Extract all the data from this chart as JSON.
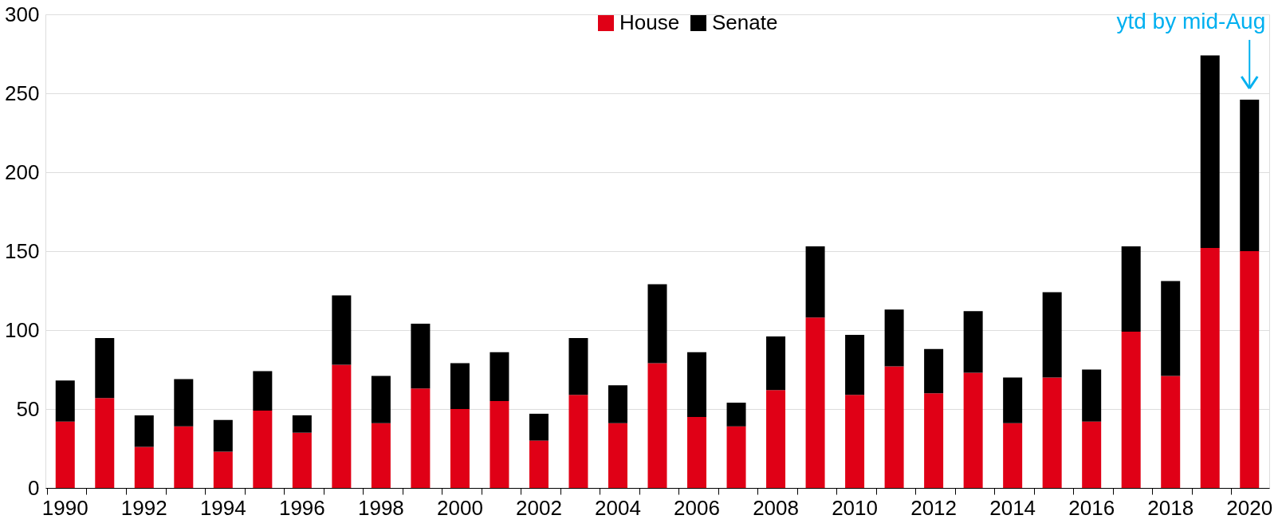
{
  "chart_data": {
    "type": "bar",
    "stacked": true,
    "categories": [
      "1990",
      null,
      "1992",
      null,
      "1994",
      null,
      "1996",
      null,
      "1998",
      null,
      "2000",
      null,
      "2002",
      null,
      "2004",
      null,
      "2006",
      null,
      "2008",
      null,
      "2010",
      null,
      "2012",
      null,
      "2014",
      null,
      "2016",
      null,
      "2018",
      null,
      "2020"
    ],
    "series": [
      {
        "name": "House",
        "color": "#e00016",
        "values": [
          42,
          57,
          26,
          39,
          23,
          49,
          35,
          78,
          41,
          63,
          50,
          55,
          30,
          59,
          41,
          79,
          45,
          39,
          62,
          108,
          59,
          77,
          60,
          73,
          41,
          70,
          42,
          99,
          71,
          152,
          150
        ]
      },
      {
        "name": "Senate",
        "color": "#000000",
        "values": [
          26,
          38,
          20,
          30,
          20,
          25,
          11,
          44,
          30,
          41,
          29,
          31,
          17,
          36,
          24,
          50,
          41,
          15,
          34,
          45,
          38,
          36,
          28,
          39,
          29,
          54,
          33,
          54,
          60,
          122,
          96
        ]
      }
    ],
    "ylim": [
      0,
      300
    ],
    "yticks": [
      0,
      50,
      100,
      150,
      200,
      250,
      300
    ],
    "grid": "y",
    "legend": "top",
    "annotations": [
      "ytd by mid-Aug"
    ]
  }
}
